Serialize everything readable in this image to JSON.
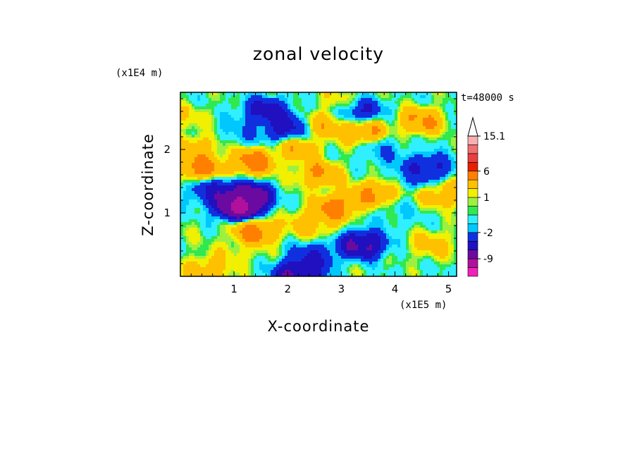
{
  "chart_data": {
    "type": "heatmap",
    "title": "zonal velocity",
    "xlabel": "X-coordinate",
    "ylabel": "Z-coordinate",
    "x_unit": "(x1E5 m)",
    "y_unit": "(x1E4 m)",
    "time_label": "t=48000 s",
    "xlim": [
      0,
      5.15
    ],
    "ylim": [
      0,
      2.9
    ],
    "x_ticks": [
      "1",
      "2",
      "3",
      "4",
      "5"
    ],
    "x_tick_values": [
      1,
      2,
      3,
      4,
      5
    ],
    "y_ticks": [
      "1",
      "2"
    ],
    "y_tick_values": [
      1,
      2
    ],
    "colorbar": {
      "levels": [
        -15,
        -12,
        -9,
        -6,
        -4,
        -2,
        -1,
        0,
        0.5,
        1,
        2,
        4,
        6,
        8,
        10,
        12.5,
        15.1
      ],
      "colors": [
        "#f020b8",
        "#b0109c",
        "#6a0aa0",
        "#2010c0",
        "#1030e0",
        "#00c8ff",
        "#30f0ff",
        "#30e850",
        "#9ef040",
        "#f0f000",
        "#ffc000",
        "#ff8000",
        "#e82000",
        "#e84040",
        "#f07070",
        "#f8b0b0"
      ],
      "labels": [
        "15.1",
        "6",
        "1",
        "-2",
        "-9"
      ],
      "label_values": [
        15.1,
        6,
        1,
        -2,
        -9
      ],
      "extend_top": true
    },
    "features": [
      {
        "x": 1.0,
        "z": 1.25,
        "v": -8
      },
      {
        "x": 1.1,
        "z": 1.1,
        "v": -12
      },
      {
        "x": 0.6,
        "z": 1.35,
        "v": -5
      },
      {
        "x": 1.25,
        "z": 1.25,
        "v": -10
      },
      {
        "x": 1.4,
        "z": 0.7,
        "v": 6
      },
      {
        "x": 1.35,
        "z": 1.8,
        "v": 6
      },
      {
        "x": 0.4,
        "z": 1.7,
        "v": 6
      },
      {
        "x": 0.3,
        "z": 2.0,
        "v": 4
      },
      {
        "x": 2.2,
        "z": 2.0,
        "v": 4
      },
      {
        "x": 1.6,
        "z": 2.6,
        "v": -6
      },
      {
        "x": 1.9,
        "z": 2.35,
        "v": -6
      },
      {
        "x": 2.6,
        "z": 1.6,
        "v": 5
      },
      {
        "x": 2.9,
        "z": 1.1,
        "v": 6
      },
      {
        "x": 3.6,
        "z": 1.3,
        "v": 5
      },
      {
        "x": 3.4,
        "z": 0.5,
        "v": -8
      },
      {
        "x": 4.4,
        "z": 1.6,
        "v": -2.5
      },
      {
        "x": 4.6,
        "z": 1.7,
        "v": -6
      },
      {
        "x": 4.5,
        "z": 2.45,
        "v": 5
      },
      {
        "x": 3.4,
        "z": 2.3,
        "v": 5
      },
      {
        "x": 3.3,
        "z": 2.6,
        "v": -6
      },
      {
        "x": 3.8,
        "z": 1.95,
        "v": -2
      },
      {
        "x": 2.5,
        "z": 0.3,
        "v": -5
      },
      {
        "x": 2.2,
        "z": 0.05,
        "v": -8
      },
      {
        "x": 0.5,
        "z": 0.1,
        "v": 4
      },
      {
        "x": 4.7,
        "z": 0.5,
        "v": 3
      },
      {
        "x": 4.0,
        "z": 0.95,
        "v": -1
      },
      {
        "x": 1.05,
        "z": 0.4,
        "v": 2
      },
      {
        "x": 2.45,
        "z": 0.85,
        "v": 4
      },
      {
        "x": 2.8,
        "z": 2.4,
        "v": 4
      },
      {
        "x": 1.2,
        "z": 2.3,
        "v": -2
      },
      {
        "x": 3.0,
        "z": 2.75,
        "v": 2
      },
      {
        "x": 0.1,
        "z": 2.5,
        "v": 2
      },
      {
        "x": 0.2,
        "z": 0.6,
        "v": 0.5
      },
      {
        "x": 4.9,
        "z": 1.3,
        "v": 4
      }
    ]
  }
}
